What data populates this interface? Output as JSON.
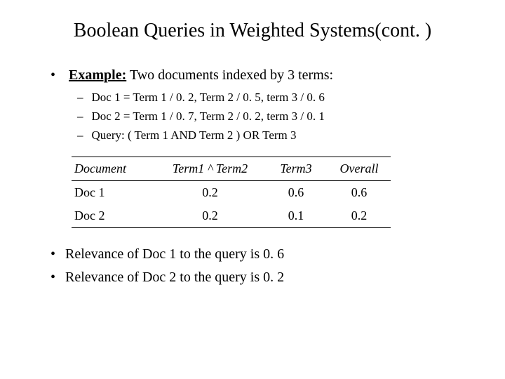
{
  "title": "Boolean Queries in Weighted Systems(cont. )",
  "example_lead": "Example:",
  "example_rest": " Two documents indexed by 3 terms:",
  "subitems": [
    "Doc 1 = Term 1 / 0. 2, Term 2 / 0. 5, term 3 / 0. 6",
    "Doc 2 = Term 1 / 0. 7, Term 2 / 0. 2, term 3 / 0. 1",
    "Query: ( Term 1 AND Term 2 ) OR Term 3"
  ],
  "table": {
    "headers": [
      "Document",
      "Term1 ^ Term2",
      "Term3",
      "Overall"
    ],
    "rows": [
      [
        "Doc 1",
        "0.2",
        "0.6",
        "0.6"
      ],
      [
        "Doc 2",
        "0.2",
        "0.1",
        "0.2"
      ]
    ]
  },
  "conclusions": [
    "Relevance of Doc 1 to the query is 0. 6",
    "Relevance of Doc 2 to the query is 0. 2"
  ]
}
